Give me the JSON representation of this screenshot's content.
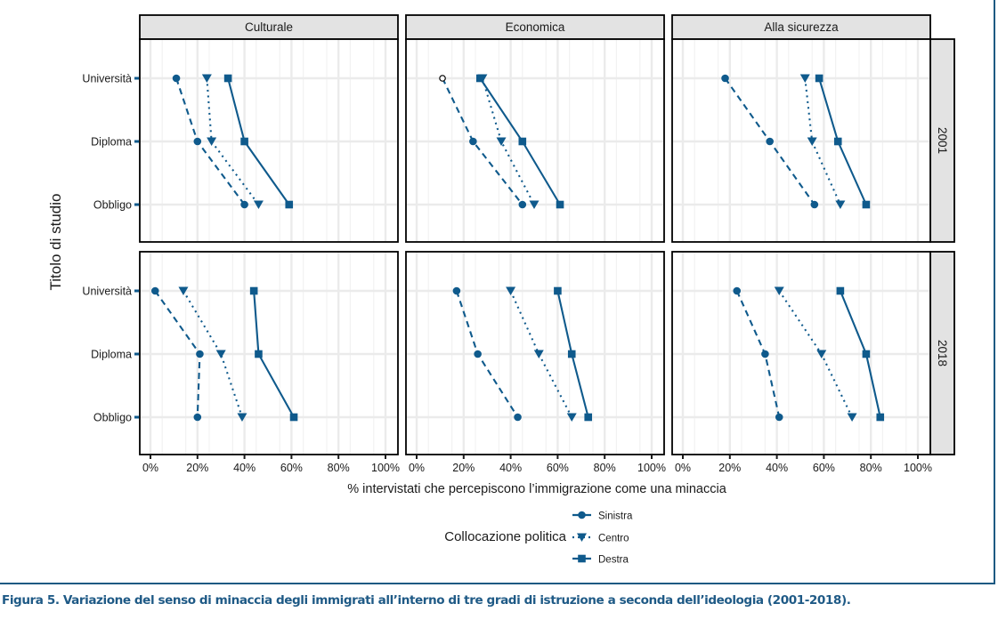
{
  "figure": {
    "caption": "Figura 5. Variazione del senso di minaccia degli immigrati all’interno di tre gradi di istruzione a seconda dell’ideologia (2001-2018).",
    "accent_color": "#1e5a82",
    "series_color": "#0f5a8c",
    "strip_fill": "#e3e3e3",
    "grid_color": "#ebebeb"
  },
  "chart_data": {
    "type": "line",
    "title": "",
    "xlabel": "% intervistati che percepiscono l’immigrazione come una minaccia",
    "ylabel": "Titolo di studio",
    "xlim": [
      0,
      100
    ],
    "x_ticks": [
      "0%",
      "20%",
      "40%",
      "60%",
      "80%",
      "100%"
    ],
    "x_tick_values": [
      0,
      20,
      40,
      60,
      80,
      100
    ],
    "categories": [
      "Università",
      "Diploma",
      "Obbligo"
    ],
    "grid": true,
    "facet_columns": [
      "Culturale",
      "Economica",
      "Alla sicurezza"
    ],
    "facet_rows": [
      "2001",
      "2018"
    ],
    "legend": {
      "title": "Collocazione politica",
      "placement": "bottom",
      "entries": [
        {
          "name": "Sinistra",
          "linetype": "dashed",
          "marker": "circle"
        },
        {
          "name": "Centro",
          "linetype": "dotted",
          "marker": "triangle-down"
        },
        {
          "name": "Destra",
          "linetype": "solid",
          "marker": "square"
        }
      ]
    },
    "panels": [
      {
        "row": "2001",
        "col": "Culturale",
        "series": [
          {
            "name": "Sinistra",
            "values": [
              11,
              20,
              40
            ]
          },
          {
            "name": "Centro",
            "values": [
              24,
              26,
              46
            ]
          },
          {
            "name": "Destra",
            "values": [
              33,
              40,
              59
            ]
          }
        ]
      },
      {
        "row": "2001",
        "col": "Economica",
        "series": [
          {
            "name": "Sinistra",
            "values": [
              11,
              24,
              45
            ],
            "open_points": [
              0
            ]
          },
          {
            "name": "Centro",
            "values": [
              28,
              36,
              50
            ]
          },
          {
            "name": "Destra",
            "values": [
              27,
              45,
              61
            ]
          }
        ]
      },
      {
        "row": "2001",
        "col": "Alla sicurezza",
        "series": [
          {
            "name": "Sinistra",
            "values": [
              18,
              37,
              56
            ]
          },
          {
            "name": "Centro",
            "values": [
              52,
              55,
              67
            ]
          },
          {
            "name": "Destra",
            "values": [
              58,
              66,
              78
            ]
          }
        ]
      },
      {
        "row": "2018",
        "col": "Culturale",
        "series": [
          {
            "name": "Sinistra",
            "values": [
              2,
              21,
              20
            ]
          },
          {
            "name": "Centro",
            "values": [
              14,
              30,
              39
            ]
          },
          {
            "name": "Destra",
            "values": [
              44,
              46,
              61
            ]
          }
        ]
      },
      {
        "row": "2018",
        "col": "Economica",
        "series": [
          {
            "name": "Sinistra",
            "values": [
              17,
              26,
              43
            ]
          },
          {
            "name": "Centro",
            "values": [
              40,
              52,
              66
            ]
          },
          {
            "name": "Destra",
            "values": [
              60,
              66,
              73
            ]
          }
        ]
      },
      {
        "row": "2018",
        "col": "Alla sicurezza",
        "series": [
          {
            "name": "Sinistra",
            "values": [
              23,
              35,
              41
            ]
          },
          {
            "name": "Centro",
            "values": [
              41,
              59,
              72
            ]
          },
          {
            "name": "Destra",
            "values": [
              67,
              78,
              84
            ]
          }
        ]
      }
    ]
  }
}
